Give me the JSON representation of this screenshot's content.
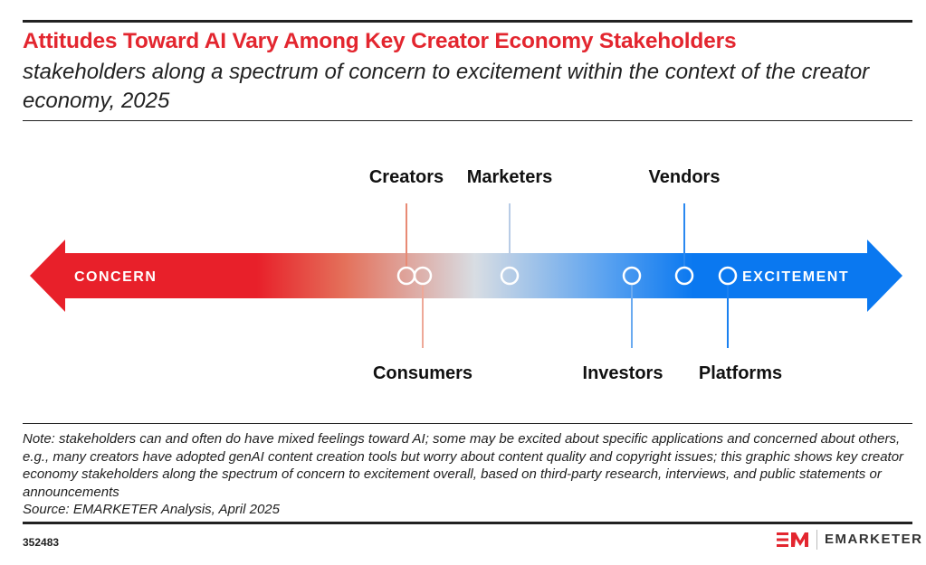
{
  "header": {
    "title": "Attitudes Toward AI Vary Among Key Creator Economy Stakeholders",
    "subtitle": "stakeholders along a spectrum of concern to excitement within the context of the creator economy, 2025"
  },
  "diagram": {
    "left_label": "CONCERN",
    "right_label": "EXCITEMENT",
    "colors": {
      "concern": "#e8202a",
      "neutral": "#d8dde3",
      "excitement": "#0a78f0"
    },
    "stakeholders_order_concern_to_excitement": [
      "Creators",
      "Consumers",
      "Marketers",
      "Investors",
      "Vendors",
      "Platforms"
    ],
    "stakeholders": {
      "creators": "Creators",
      "consumers": "Consumers",
      "marketers": "Marketers",
      "investors": "Investors",
      "vendors": "Vendors",
      "platforms": "Platforms"
    }
  },
  "footer": {
    "note": "Note: stakeholders can and often do have mixed feelings toward AI; some may be excited about specific applications and concerned about others, e.g., many creators have adopted genAI content creation tools but worry about content quality and copyright issues; this graphic shows key creator economy stakeholders along the spectrum of concern to excitement overall, based on third-party research, interviews, and public statements or announcements",
    "source": "Source: EMARKETER Analysis, April 2025",
    "chart_id": "352483",
    "brand": "EMARKETER",
    "brand_mark": "EM"
  }
}
